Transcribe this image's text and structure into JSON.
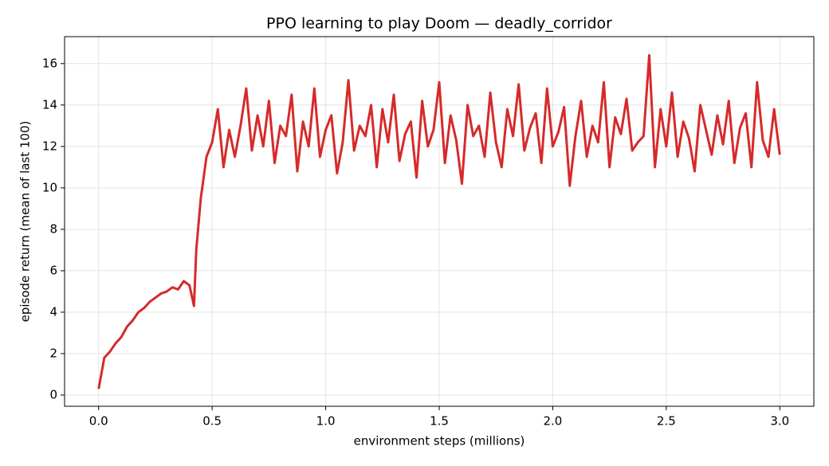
{
  "chart_data": {
    "type": "line",
    "title": "PPO learning to play Doom — deadly_corridor",
    "x_label": "environment steps (millions)",
    "y_label": "episode return (mean of last 100)",
    "color": "#d62a2a",
    "grid": true,
    "xlim": [
      -0.15,
      3.15
    ],
    "ylim": [
      -0.54,
      17.3
    ],
    "xticks": [
      {
        "value": 0,
        "label": "0.0"
      },
      0.5,
      {
        "value": 1,
        "label": "1.0"
      },
      1.5,
      {
        "value": 2,
        "label": "2.0"
      },
      2.5,
      {
        "value": 3,
        "label": "3.0"
      }
    ],
    "yticks": [
      0,
      2,
      4,
      6,
      8,
      10,
      12,
      14,
      16
    ],
    "x": [
      0,
      0.025,
      0.05,
      0.075,
      0.1,
      0.125,
      0.15,
      0.175,
      0.2,
      0.225,
      0.25,
      0.275,
      0.3,
      0.325,
      0.35,
      0.375,
      0.4,
      0.42,
      0.43,
      0.45,
      0.475,
      0.5,
      0.525,
      0.55,
      0.575,
      0.6,
      0.625,
      0.65,
      0.675,
      0.7,
      0.725,
      0.75,
      0.775,
      0.8,
      0.825,
      0.85,
      0.875,
      0.9,
      0.925,
      0.95,
      0.975,
      1.0,
      1.025,
      1.05,
      1.075,
      1.1,
      1.125,
      1.15,
      1.175,
      1.2,
      1.225,
      1.25,
      1.275,
      1.3,
      1.325,
      1.35,
      1.375,
      1.4,
      1.425,
      1.45,
      1.475,
      1.5,
      1.525,
      1.55,
      1.575,
      1.6,
      1.625,
      1.65,
      1.675,
      1.7,
      1.725,
      1.75,
      1.775,
      1.8,
      1.825,
      1.85,
      1.875,
      1.9,
      1.925,
      1.95,
      1.975,
      2.0,
      2.025,
      2.05,
      2.075,
      2.1,
      2.125,
      2.15,
      2.175,
      2.2,
      2.225,
      2.25,
      2.275,
      2.3,
      2.325,
      2.35,
      2.375,
      2.4,
      2.425,
      2.45,
      2.475,
      2.5,
      2.525,
      2.55,
      2.575,
      2.6,
      2.625,
      2.65,
      2.675,
      2.7,
      2.725,
      2.75,
      2.775,
      2.8,
      2.825,
      2.85,
      2.875,
      2.9,
      2.925,
      2.95,
      2.975,
      3.0
    ],
    "values": [
      0.3,
      1.8,
      2.1,
      2.5,
      2.8,
      3.3,
      3.6,
      4.0,
      4.2,
      4.5,
      4.7,
      4.9,
      5.0,
      5.2,
      5.1,
      5.5,
      5.3,
      4.3,
      7.0,
      9.5,
      11.5,
      12.2,
      13.8,
      11.0,
      12.8,
      11.5,
      13.0,
      14.8,
      11.8,
      13.5,
      12.0,
      14.2,
      11.2,
      13.0,
      12.5,
      14.5,
      10.8,
      13.2,
      12.0,
      14.8,
      11.5,
      12.8,
      13.5,
      10.7,
      12.2,
      15.2,
      11.8,
      13.0,
      12.5,
      14.0,
      11.0,
      13.8,
      12.2,
      14.5,
      11.3,
      12.6,
      13.2,
      10.5,
      14.2,
      12.0,
      12.8,
      15.1,
      11.2,
      13.5,
      12.3,
      10.2,
      14.0,
      12.5,
      13.0,
      11.5,
      14.6,
      12.2,
      11.0,
      13.8,
      12.5,
      15.0,
      11.8,
      12.9,
      13.6,
      11.2,
      14.8,
      12.0,
      12.7,
      13.9,
      10.1,
      12.5,
      14.2,
      11.5,
      13.0,
      12.2,
      15.1,
      11.0,
      13.4,
      12.6,
      14.3,
      11.8,
      12.2,
      12.5,
      16.4,
      11.0,
      13.8,
      12.0,
      14.6,
      11.5,
      13.2,
      12.4,
      10.8,
      14.0,
      12.8,
      11.6,
      13.5,
      12.1,
      14.2,
      11.2,
      12.9,
      13.6,
      11.0,
      15.1,
      12.3,
      11.5,
      13.8,
      11.6
    ]
  }
}
